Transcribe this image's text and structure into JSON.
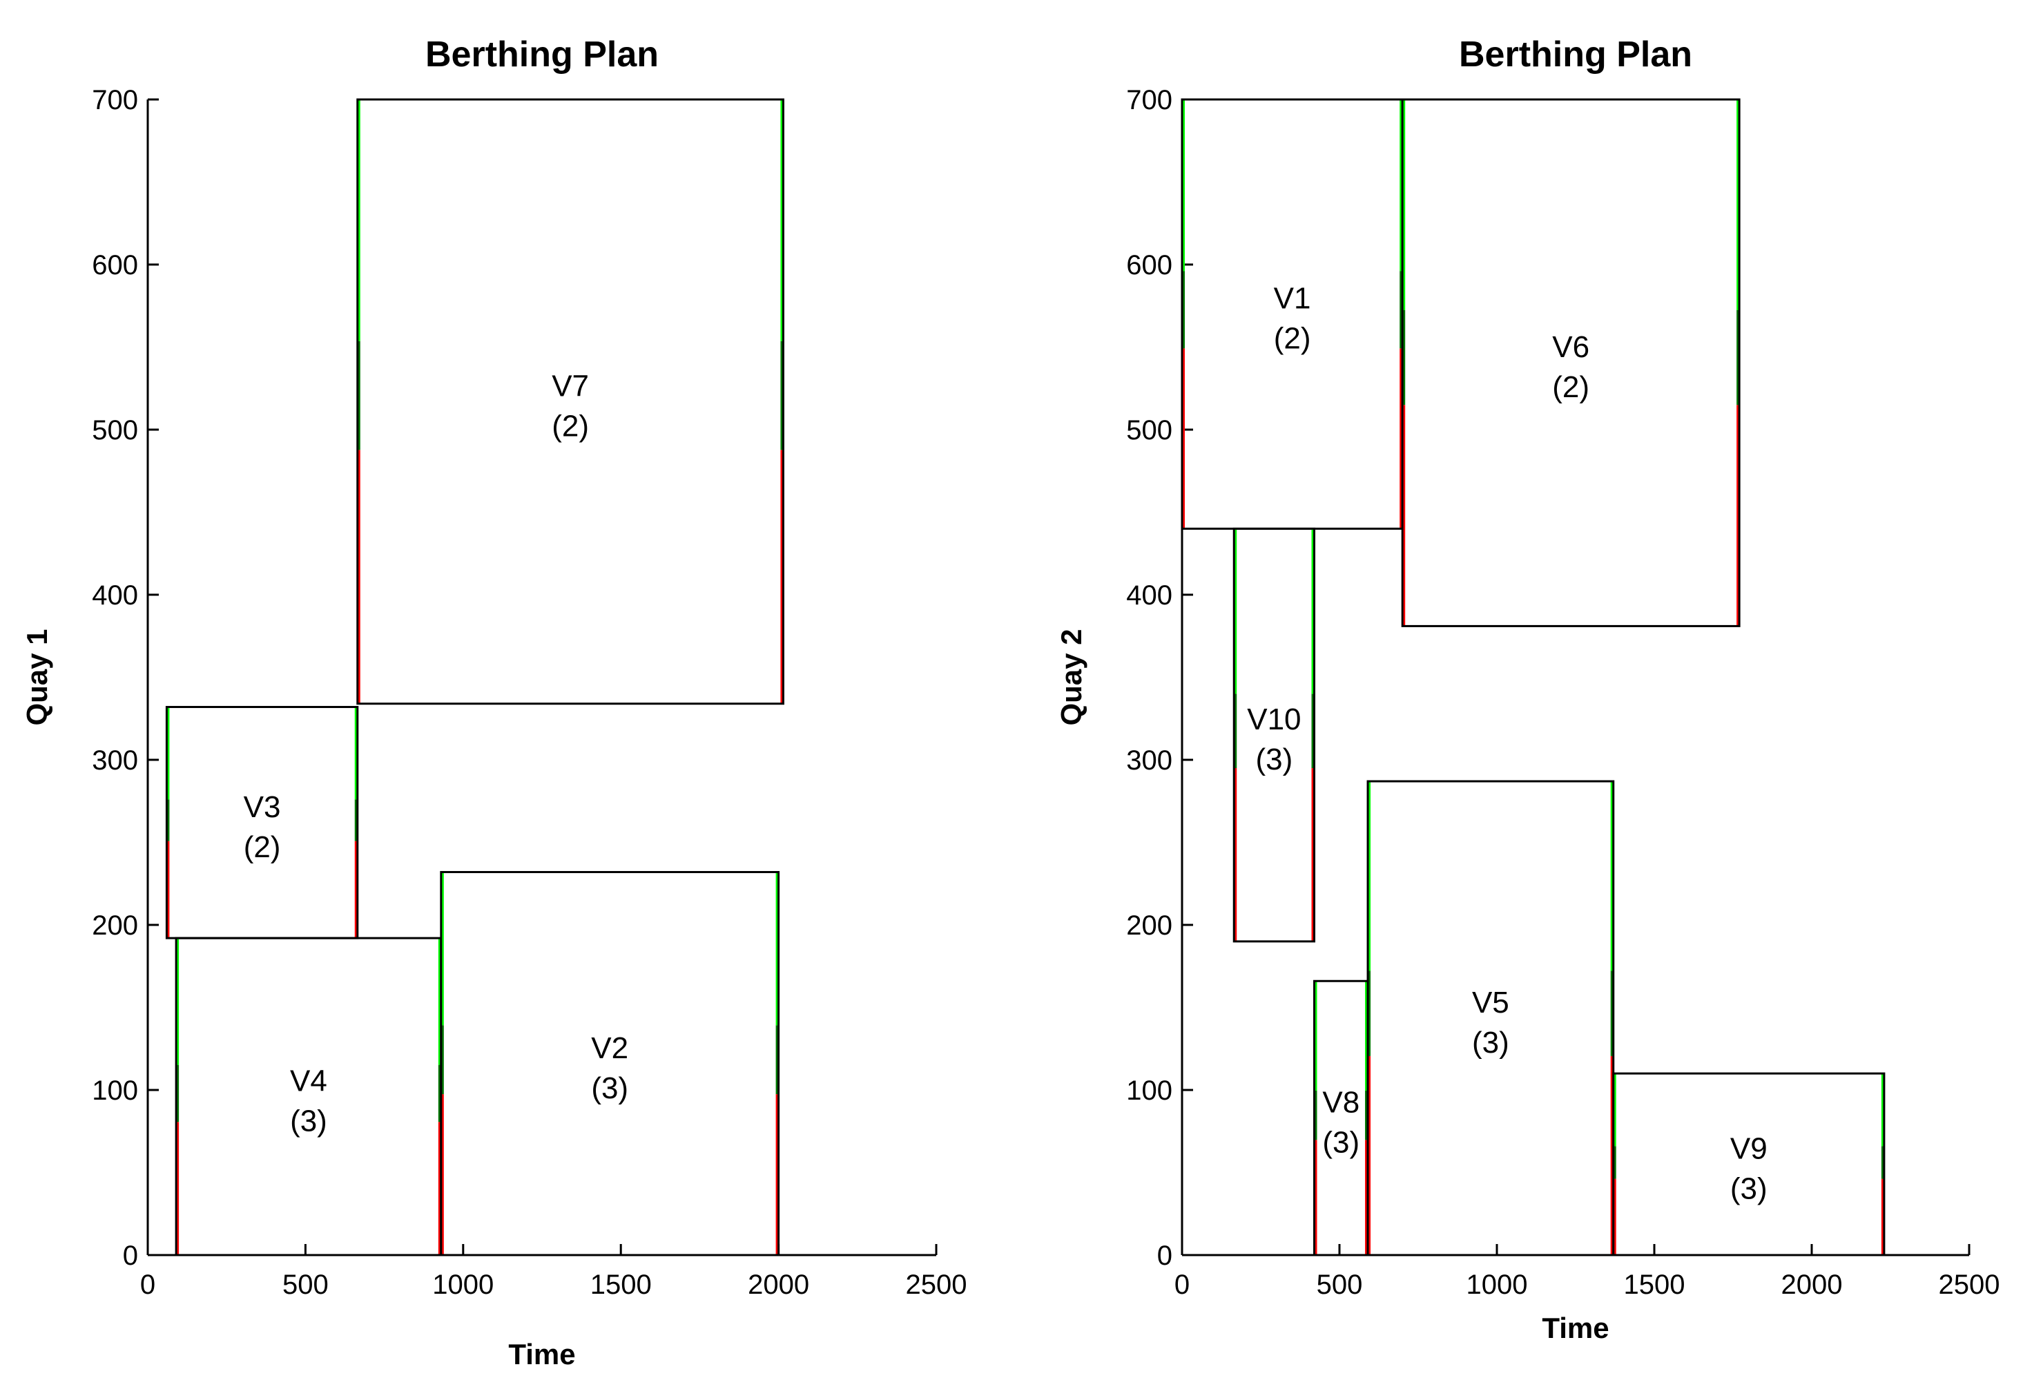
{
  "chart_data": [
    {
      "type": "gantt",
      "title": "Berthing Plan",
      "xlabel": "Time",
      "ylabel": "Quay 1",
      "xlim": [
        0,
        2500
      ],
      "ylim": [
        0,
        700
      ],
      "xticks": [
        0,
        500,
        1000,
        1500,
        2000,
        2500
      ],
      "yticks": [
        0,
        100,
        200,
        300,
        400,
        500,
        600,
        700
      ],
      "vessels": [
        {
          "name": "V7",
          "count": "(2)",
          "start": 665,
          "end": 2015,
          "pos_low": 334,
          "pos_high": 700
        },
        {
          "name": "V3",
          "count": "(2)",
          "start": 60,
          "end": 665,
          "pos_low": 192,
          "pos_high": 332
        },
        {
          "name": "V4",
          "count": "(3)",
          "start": 90,
          "end": 930,
          "pos_low": 0,
          "pos_high": 192
        },
        {
          "name": "V2",
          "count": "(3)",
          "start": 930,
          "end": 2000,
          "pos_low": 0,
          "pos_high": 232
        }
      ]
    },
    {
      "type": "gantt",
      "title": "Berthing Plan",
      "xlabel": "Time",
      "ylabel": "Quay 2",
      "xlim": [
        0,
        2500
      ],
      "ylim": [
        0,
        700
      ],
      "xticks": [
        0,
        500,
        1000,
        1500,
        2000,
        2500
      ],
      "yticks": [
        0,
        100,
        200,
        300,
        400,
        500,
        600,
        700
      ],
      "vessels": [
        {
          "name": "V1",
          "count": "(2)",
          "start": 0,
          "end": 700,
          "pos_low": 440,
          "pos_high": 700
        },
        {
          "name": "V6",
          "count": "(2)",
          "start": 700,
          "end": 1770,
          "pos_low": 381,
          "pos_high": 700
        },
        {
          "name": "V10",
          "count": "(3)",
          "start": 165,
          "end": 420,
          "pos_low": 190,
          "pos_high": 440
        },
        {
          "name": "V8",
          "count": "(3)",
          "start": 420,
          "end": 590,
          "pos_low": 0,
          "pos_high": 166
        },
        {
          "name": "V5",
          "count": "(3)",
          "start": 590,
          "end": 1370,
          "pos_low": 0,
          "pos_high": 287
        },
        {
          "name": "V9",
          "count": "(3)",
          "start": 1370,
          "end": 2230,
          "pos_low": 0,
          "pos_high": 110
        }
      ]
    }
  ],
  "colors": {
    "axis": "#000000",
    "crane_red": "#ff0000",
    "crane_green": "#00ff00",
    "crane_dark": "#007700"
  }
}
